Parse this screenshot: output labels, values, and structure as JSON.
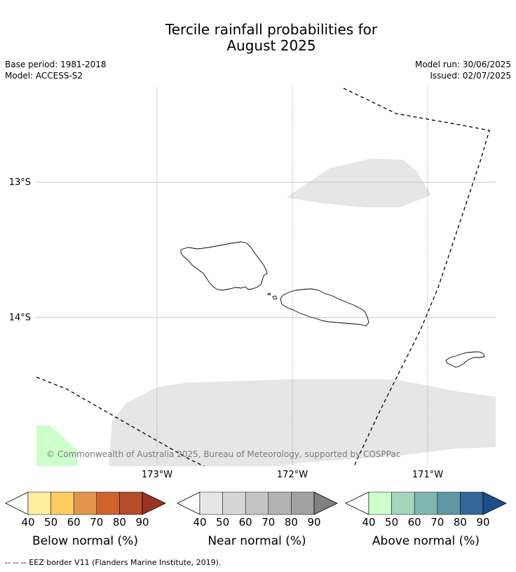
{
  "header": {
    "title_line1": "Tercile rainfall probabilities for",
    "title_line2": "August 2025",
    "base_period": "Base period: 1981-2018",
    "model": "Model: ACCESS-S2",
    "model_run": "Model run: 30/06/2025",
    "issued": "Issued: 02/07/2025"
  },
  "map": {
    "lat_labels": [
      "13°S",
      "14°S"
    ],
    "lon_labels": [
      "173°W",
      "172°W",
      "171°W"
    ],
    "copyright": "© Commonwealth of Australia 2025, Bureau of Meteorology, supported by COSPPac",
    "colors": {
      "near_normal_area": "#e6e6e6",
      "above_normal_area": "#ccffcc",
      "coastline": "#000000",
      "eez_border": "#000000",
      "gridline": "#b0b0b0"
    }
  },
  "legends": [
    {
      "title": "Below normal (%)",
      "ticks": [
        "40",
        "50",
        "60",
        "70",
        "80",
        "90"
      ],
      "colors": [
        "#ffeda0",
        "#fecc5c",
        "#e3964a",
        "#d06230",
        "#b34d2a",
        "#9b3222"
      ]
    },
    {
      "title": "Near normal (%)",
      "ticks": [
        "40",
        "50",
        "60",
        "70",
        "80",
        "90"
      ],
      "colors": [
        "#e6e6e6",
        "#d6d6d6",
        "#c4c4c4",
        "#b3b3b3",
        "#a1a1a1",
        "#808080"
      ]
    },
    {
      "title": "Above normal (%)",
      "ticks": [
        "40",
        "50",
        "60",
        "70",
        "80",
        "90"
      ],
      "colors": [
        "#ccffcc",
        "#a3d6bd",
        "#80b5b0",
        "#5f96a3",
        "#336699",
        "#1a4f8a"
      ]
    }
  ],
  "footnote": "--  --  -- EEZ border V11 (Flanders Marine Institute, 2019)."
}
